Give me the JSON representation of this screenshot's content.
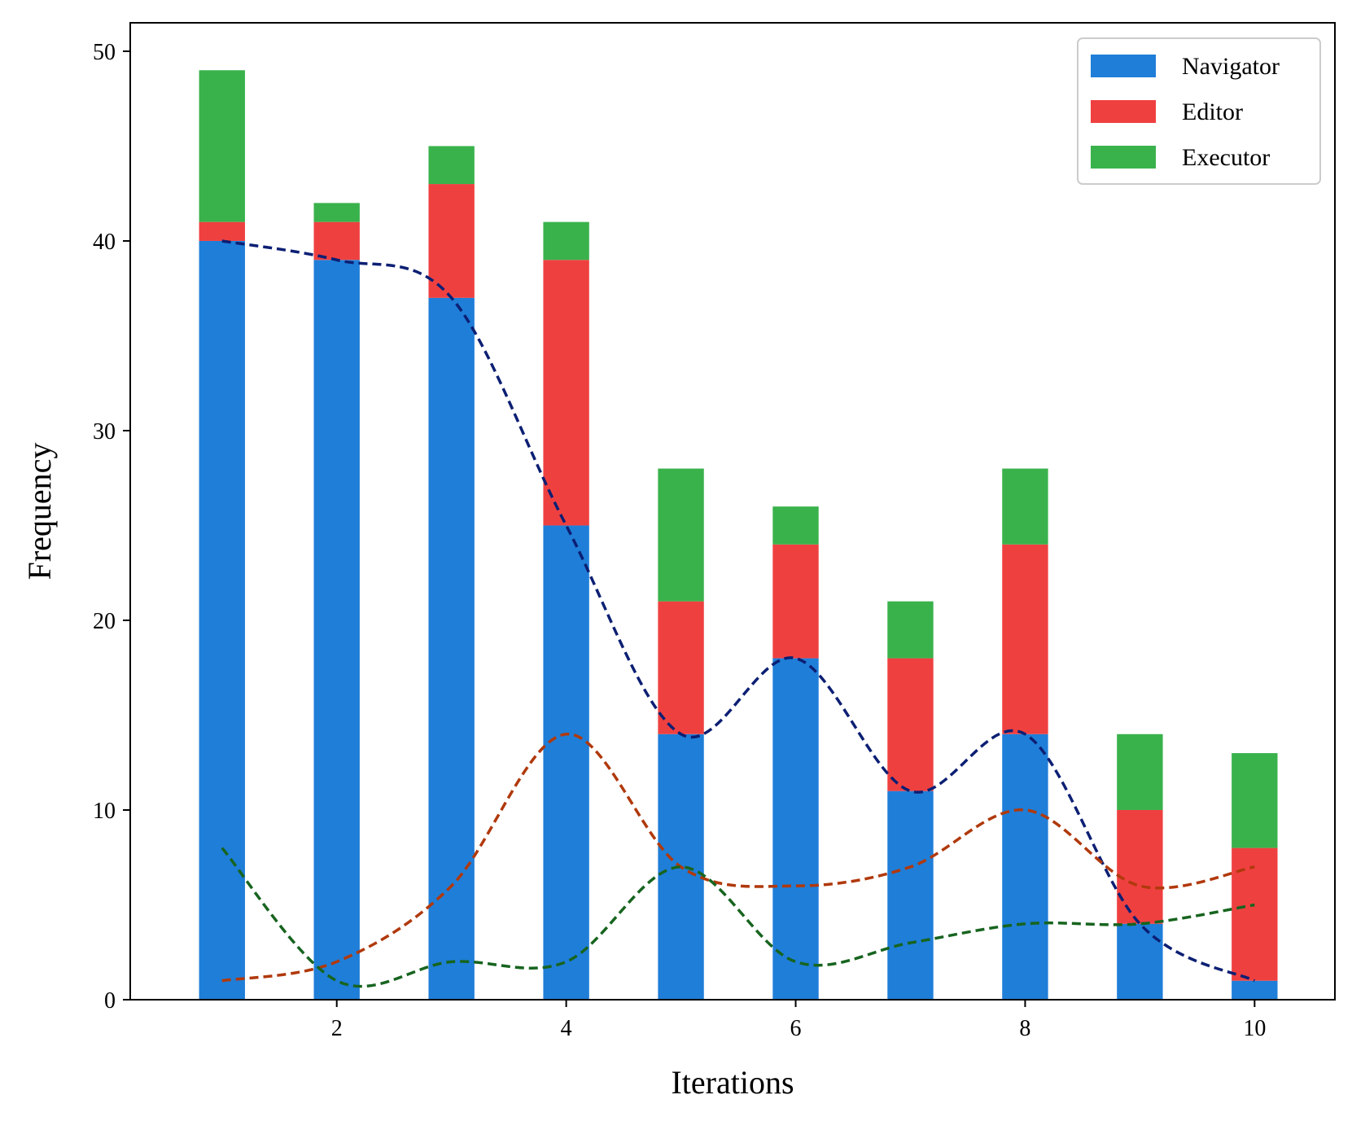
{
  "chart_data": {
    "type": "bar",
    "stacked": true,
    "title": "",
    "xlabel": "Iterations",
    "ylabel": "Frequency",
    "x": [
      1,
      2,
      3,
      4,
      5,
      6,
      7,
      8,
      9,
      10
    ],
    "xticks": [
      2,
      4,
      6,
      8,
      10
    ],
    "yticks": [
      0,
      10,
      20,
      30,
      40,
      50
    ],
    "xlim": [
      0.2,
      10.7
    ],
    "ylim": [
      0,
      51.5
    ],
    "legend_position": "top-right",
    "series": [
      {
        "name": "Navigator",
        "color": "#1f7ed8",
        "line_color": "#0c1f73",
        "values": [
          40,
          39,
          37,
          25,
          14,
          18,
          11,
          14,
          4,
          1
        ]
      },
      {
        "name": "Editor",
        "color": "#ef4040",
        "line_color": "#b0390c",
        "values": [
          1,
          2,
          6,
          14,
          7,
          6,
          7,
          10,
          6,
          7
        ]
      },
      {
        "name": "Executor",
        "color": "#3ab24c",
        "line_color": "#17641f",
        "values": [
          8,
          1,
          2,
          2,
          7,
          2,
          3,
          4,
          4,
          5
        ]
      }
    ],
    "trend_lines": "smoothed dashed curve through each series' per-iteration counts"
  }
}
